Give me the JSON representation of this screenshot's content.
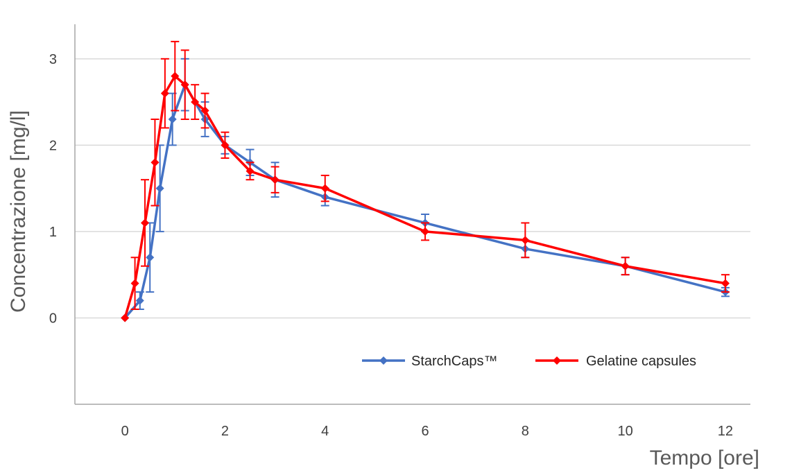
{
  "chart_data": {
    "type": "line",
    "xlabel": "Tempo [ore]",
    "ylabel": "Concentrazione [mg/l]",
    "xlim": [
      -1,
      12.5
    ],
    "ylim": [
      -1,
      3.4
    ],
    "xticks": [
      0,
      2,
      4,
      6,
      8,
      10,
      12
    ],
    "yticks": [
      0,
      1,
      2,
      3
    ],
    "grid": "horizontal",
    "legend_position": "bottom-right",
    "series": [
      {
        "name": "StarchCaps™",
        "color": "#4472c4",
        "x": [
          0,
          0.3,
          0.5,
          0.7,
          0.95,
          1.2,
          1.6,
          2.0,
          2.5,
          3.0,
          4.0,
          6.0,
          8.0,
          10.0,
          12.0
        ],
        "y": [
          0,
          0.2,
          0.7,
          1.5,
          2.3,
          2.7,
          2.3,
          2.0,
          1.8,
          1.6,
          1.4,
          1.1,
          0.8,
          0.6,
          0.3
        ],
        "err": [
          0,
          0.1,
          0.4,
          0.5,
          0.3,
          0.3,
          0.2,
          0.1,
          0.15,
          0.2,
          0.1,
          0.1,
          0.1,
          0.1,
          0.05
        ]
      },
      {
        "name": "Gelatine capsules",
        "color": "#ff0000",
        "x": [
          0,
          0.2,
          0.4,
          0.6,
          0.8,
          1.0,
          1.2,
          1.4,
          1.6,
          2.0,
          2.5,
          3.0,
          4.0,
          6.0,
          8.0,
          10.0,
          12.0
        ],
        "y": [
          0,
          0.4,
          1.1,
          1.8,
          2.6,
          2.8,
          2.7,
          2.5,
          2.4,
          2.0,
          1.7,
          1.6,
          1.5,
          1.0,
          0.9,
          0.6,
          0.4
        ],
        "err": [
          0,
          0.3,
          0.5,
          0.5,
          0.4,
          0.4,
          0.4,
          0.2,
          0.2,
          0.15,
          0.1,
          0.15,
          0.15,
          0.1,
          0.2,
          0.1,
          0.1
        ]
      }
    ]
  }
}
